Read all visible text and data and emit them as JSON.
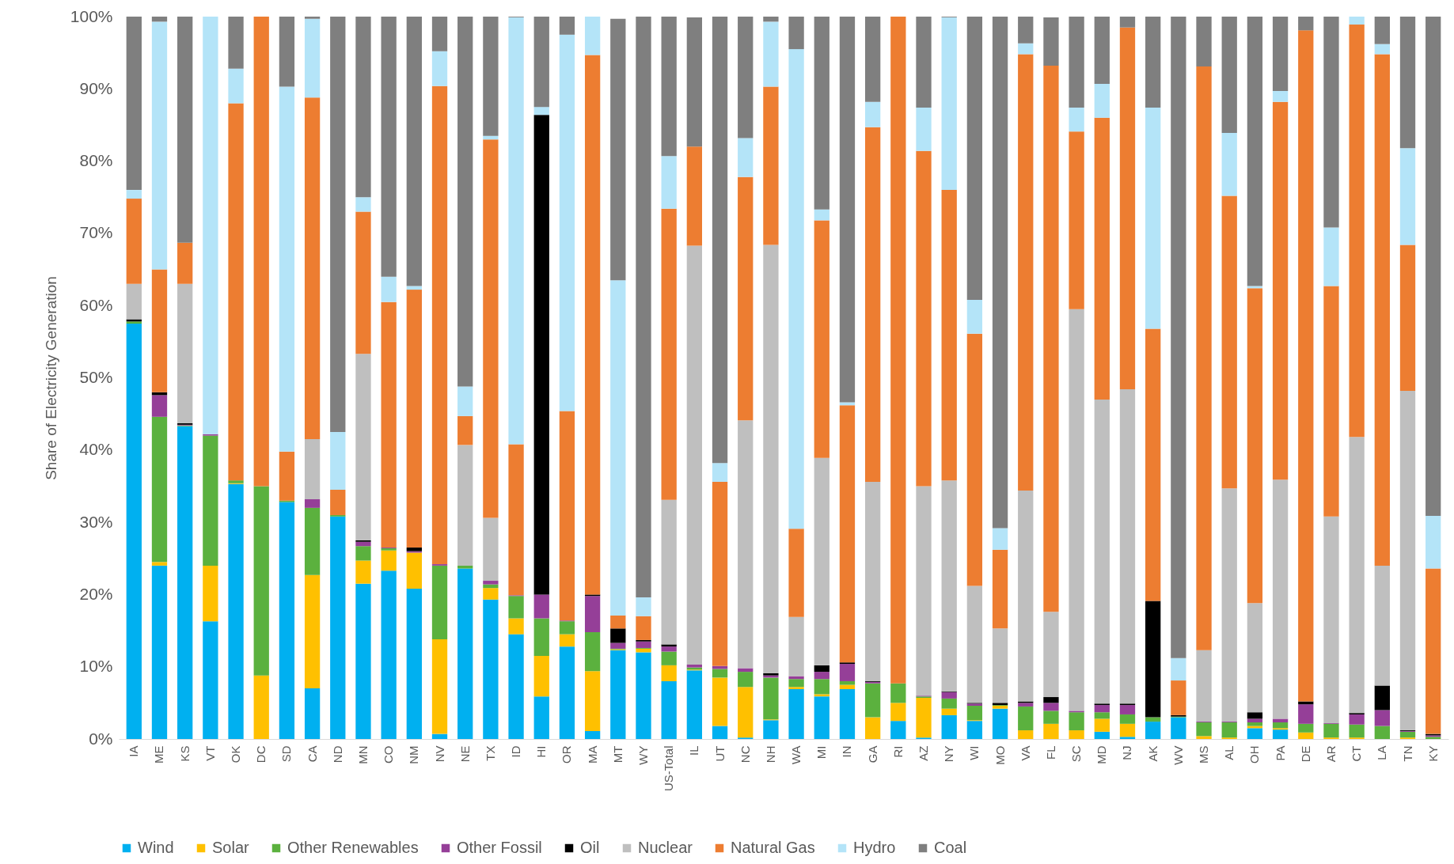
{
  "chart_data": {
    "type": "bar",
    "stacked": true,
    "ylabel": "Share of Electricity Generation",
    "categories": [
      "IA",
      "ME",
      "KS",
      "VT",
      "OK",
      "DC",
      "SD",
      "CA",
      "ND",
      "MN",
      "CO",
      "NM",
      "NV",
      "NE",
      "TX",
      "ID",
      "HI",
      "OR",
      "MA",
      "MT",
      "WY",
      "US-Total",
      "IL",
      "UT",
      "NC",
      "NH",
      "WA",
      "MI",
      "IN",
      "GA",
      "RI",
      "AZ",
      "NY",
      "WI",
      "MO",
      "VA",
      "FL",
      "SC",
      "MD",
      "NJ",
      "AK",
      "WV",
      "MS",
      "AL",
      "OH",
      "PA",
      "DE",
      "AR",
      "CT",
      "LA",
      "TN",
      "KY"
    ],
    "ylim": [
      0,
      100
    ],
    "yticks": [
      {
        "value": 0,
        "label": "0%"
      },
      {
        "value": 10,
        "label": "10%"
      },
      {
        "value": 20,
        "label": "20%"
      },
      {
        "value": 30,
        "label": "30%"
      },
      {
        "value": 40,
        "label": "40%"
      },
      {
        "value": 50,
        "label": "50%"
      },
      {
        "value": 60,
        "label": "60%"
      },
      {
        "value": 70,
        "label": "70%"
      },
      {
        "value": 80,
        "label": "80%"
      },
      {
        "value": 90,
        "label": "90%"
      },
      {
        "value": 100,
        "label": "100%"
      }
    ],
    "grid": false,
    "legend": "bottom",
    "series": [
      {
        "name": "Wind",
        "color": "#00b0f0",
        "values": [
          57.5,
          24,
          43.3,
          16.3,
          35.3,
          0,
          32.8,
          7,
          30.8,
          21.5,
          23.3,
          20.8,
          0.7,
          23.6,
          19.3,
          14.5,
          5.9,
          12.8,
          1.1,
          12.3,
          12,
          8,
          9.5,
          1.8,
          0.2,
          2.6,
          6.9,
          5.9,
          6.9,
          0,
          2.5,
          0.2,
          3.3,
          2.5,
          4.2,
          0,
          0,
          0,
          1,
          0.3,
          2.4,
          3,
          0,
          0,
          1.5,
          1.3,
          0,
          0,
          0,
          0,
          0,
          0
        ]
      },
      {
        "name": "Solar",
        "color": "#ffc000",
        "values": [
          0,
          0.5,
          0,
          7.7,
          0.1,
          8.8,
          0,
          15.7,
          0,
          3.2,
          2.8,
          5,
          13.1,
          0,
          1.6,
          2.2,
          5.6,
          1.7,
          8.3,
          0.1,
          0.5,
          2.2,
          0.1,
          6.7,
          7,
          0.1,
          0.3,
          0.3,
          0.6,
          3,
          2.5,
          5.5,
          0.9,
          0.1,
          0.4,
          1.2,
          2.1,
          1.2,
          1.8,
          1.8,
          0,
          0,
          0.4,
          0.2,
          0.3,
          0.2,
          0.9,
          0.2,
          0.2,
          0,
          0.2,
          0
        ]
      },
      {
        "name": "Other Renewables",
        "color": "#5bb13e",
        "values": [
          0.3,
          20.1,
          0.1,
          18,
          0.4,
          26.2,
          0.2,
          9.3,
          0.2,
          2,
          0.3,
          0,
          10.2,
          0.4,
          0.5,
          3.1,
          5.2,
          1.8,
          5.4,
          0.1,
          0.1,
          1.9,
          0.3,
          1.2,
          2.1,
          5.8,
          1.1,
          2.1,
          0.5,
          4.7,
          2.7,
          0.2,
          1.4,
          2,
          0.1,
          3.3,
          1.8,
          2.5,
          0.9,
          1.3,
          0.6,
          0.1,
          1.9,
          2.1,
          0.5,
          0.8,
          1.2,
          1.9,
          1.8,
          1.8,
          0.8,
          0.3
        ]
      },
      {
        "name": "Other Fossil",
        "color": "#953f98",
        "values": [
          0,
          3,
          0.1,
          0.2,
          0,
          0,
          0,
          1.2,
          0,
          0.6,
          0.1,
          0.2,
          0.2,
          0,
          0.5,
          0.1,
          3.3,
          0.1,
          5,
          0.8,
          0.9,
          0.7,
          0.4,
          0.4,
          0.5,
          0.3,
          0.4,
          1,
          2.4,
          0.2,
          0,
          0.1,
          0.9,
          0.3,
          0,
          0.5,
          1.1,
          0.2,
          1,
          1.3,
          0,
          0,
          0.1,
          0.1,
          0.5,
          0.5,
          2.7,
          0.1,
          1.4,
          2.2,
          0.1,
          0.2
        ]
      },
      {
        "name": "Oil",
        "color": "#000000",
        "values": [
          0.3,
          0.4,
          0.2,
          0,
          0,
          0,
          0,
          0,
          0,
          0.2,
          0,
          0.5,
          0,
          0,
          0,
          0,
          66.4,
          0,
          0.2,
          2,
          0.2,
          0.3,
          0,
          0,
          0,
          0.3,
          0,
          0.9,
          0.2,
          0.1,
          0,
          0,
          0.1,
          0.1,
          0.3,
          0.2,
          0.8,
          0,
          0.2,
          0.2,
          16.1,
          0.2,
          0,
          0,
          0.9,
          0,
          0.4,
          0,
          0.2,
          3.4,
          0.1,
          0.2
        ]
      },
      {
        "name": "Nuclear",
        "color": "#bfbfbf",
        "values": [
          4.9,
          0,
          19.3,
          0,
          0,
          0,
          0,
          8.3,
          0,
          25.8,
          0,
          0,
          0,
          16.7,
          8.7,
          0,
          0,
          0,
          0,
          0,
          0,
          20,
          58,
          0,
          34.3,
          59.3,
          8.2,
          28.7,
          0,
          27.6,
          0,
          29,
          29.2,
          16.2,
          10.3,
          29.2,
          11.8,
          55.6,
          42.1,
          43.5,
          0,
          0,
          9.9,
          32.3,
          15.1,
          33.1,
          0,
          28.6,
          38.2,
          16.6,
          47,
          0
        ]
      },
      {
        "name": "Natural Gas",
        "color": "#ed7d31",
        "values": [
          11.8,
          17,
          5.7,
          0,
          52.2,
          65,
          6.8,
          47.3,
          3.5,
          19.7,
          34,
          35.7,
          66.2,
          4,
          52.4,
          20.9,
          0,
          29,
          74.7,
          1.8,
          3.3,
          40.3,
          13.7,
          25.5,
          33.7,
          21.9,
          12.2,
          32.9,
          35.6,
          49.1,
          92.3,
          46.4,
          40.2,
          34.9,
          10.9,
          60.4,
          75.6,
          24.6,
          39,
          50.1,
          37.7,
          4.8,
          80.8,
          40.5,
          43.6,
          52.3,
          92.9,
          31.9,
          57.1,
          70.8,
          20.2,
          22.9
        ]
      },
      {
        "name": "Hydro",
        "color": "#b4e4f8",
        "values": [
          1.2,
          34.3,
          0,
          57.8,
          4.8,
          0,
          50.5,
          10.9,
          8,
          2,
          3.5,
          0.5,
          4.8,
          4.1,
          0.5,
          59.1,
          1.1,
          52.1,
          5.3,
          46.4,
          2.6,
          7.3,
          null,
          2.6,
          5.4,
          9,
          66.4,
          1.5,
          0.4,
          3.5,
          0,
          6,
          23.9,
          4.7,
          3,
          1.5,
          null,
          3.3,
          4.7,
          0,
          30.6,
          3.1,
          0,
          8.7,
          0.3,
          1.5,
          0,
          8.1,
          1.1,
          1.4,
          13.4,
          7.3
        ]
      },
      {
        "name": "Coal",
        "color": "#7f7f7f",
        "values": [
          24,
          0.7,
          31.3,
          0,
          7.2,
          0,
          9.7,
          0.3,
          57.5,
          25,
          36,
          37.3,
          4.8,
          51.2,
          16.5,
          0.1,
          12.5,
          2.5,
          0,
          36.2,
          80.4,
          19.3,
          17.9,
          61.8,
          16.8,
          0.7,
          4.5,
          26.7,
          53.4,
          11.8,
          0,
          12.6,
          0.1,
          39.2,
          70.8,
          3.7,
          6.7,
          12.6,
          9.3,
          1.5,
          12.6,
          88.8,
          6.9,
          16.1,
          37.3,
          10.3,
          1.9,
          29.2,
          0,
          3.8,
          18.2,
          69.1
        ]
      }
    ]
  }
}
